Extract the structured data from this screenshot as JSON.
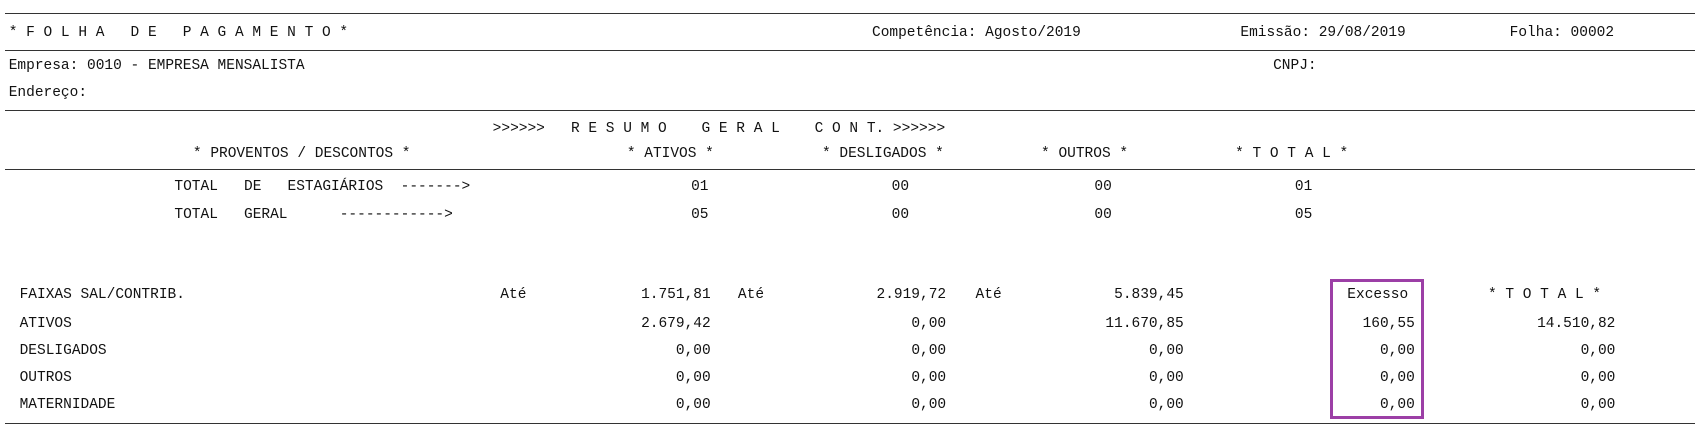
{
  "header": {
    "title": "* F O L H A   D E   P A G A M E N T O *",
    "competencia": "Competência: Agosto/2019",
    "emissao": "Emissão: 29/08/2019",
    "folha": "Folha: 00002"
  },
  "empresa": "Empresa: 0010 - EMPRESA MENSALISTA",
  "cnpj": "CNPJ:",
  "endereco": "Endereço:",
  "resumo": {
    "title": ">>>>>>   R E S U M O    G E R A L    C O N T. >>>>>>",
    "headers": [
      "* PROVENTOS / DESCONTOS *",
      "* ATIVOS *",
      "* DESLIGADOS *",
      "* OUTROS *",
      "* T O T A L *"
    ],
    "rows": [
      [
        "TOTAL   DE   ESTAGIÁRIOS  ------->",
        "01",
        "00",
        "00",
        "01"
      ],
      [
        "TOTAL   GERAL      ------------>",
        "05",
        "00",
        "00",
        "05"
      ]
    ]
  },
  "faixas": {
    "header": [
      "FAIXAS SAL/CONTRIB.",
      "Até",
      "1.751,81",
      "Até",
      "2.919,72",
      "Até",
      "5.839,45",
      "Excesso",
      "* T O T A L *"
    ],
    "rows": [
      [
        "ATIVOS",
        "2.679,42",
        "0,00",
        "11.670,85",
        "160,55",
        "14.510,82"
      ],
      [
        "DESLIGADOS",
        "0,00",
        "0,00",
        "0,00",
        "0,00",
        "0,00"
      ],
      [
        "OUTROS",
        "0,00",
        "0,00",
        "0,00",
        "0,00",
        "0,00"
      ],
      [
        "MATERNIDADE",
        "0,00",
        "0,00",
        "0,00",
        "0,00",
        "0,00"
      ]
    ]
  }
}
